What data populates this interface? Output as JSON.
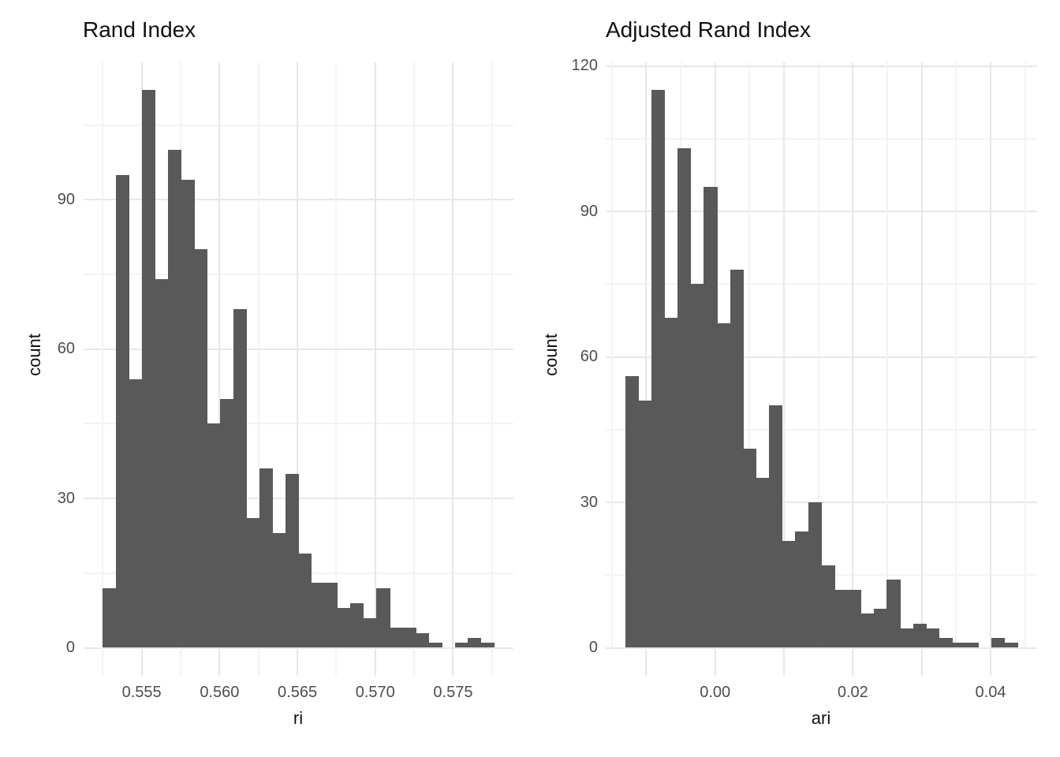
{
  "figure": {
    "background": "#ffffff",
    "bar_color": "#595959",
    "grid_major_color": "#e7e7e7",
    "grid_minor_color": "#f3f3f3",
    "title_color": "#111111",
    "tick_label_color": "#4d4d4d"
  },
  "chart_data": [
    {
      "type": "bar",
      "subtype": "histogram",
      "title": "Rand Index",
      "xlabel": "ri",
      "ylabel": "count",
      "n_bins": 30,
      "total_count": 1000,
      "bin_start": 0.5525,
      "bin_width": 0.000837,
      "counts": [
        12,
        95,
        54,
        112,
        74,
        100,
        94,
        80,
        45,
        50,
        68,
        26,
        36,
        23,
        35,
        19,
        13,
        13,
        8,
        9,
        6,
        12,
        4,
        4,
        3,
        1,
        0,
        1,
        2,
        1
      ],
      "x_tick_values": [
        0.555,
        0.56,
        0.565,
        0.57,
        0.575
      ],
      "x_tick_labels": [
        "0.555",
        "0.560",
        "0.565",
        "0.570",
        "0.575"
      ],
      "y_tick_values": [
        0,
        30,
        60,
        90
      ],
      "y_tick_labels": [
        "0",
        "30",
        "60",
        "90"
      ],
      "y_minor_values": [
        15,
        45,
        75,
        105
      ],
      "x_grid_start": 0.5525,
      "x_grid_step": 0.0025,
      "x_grid_count": 11,
      "xlim": [
        0.5513,
        0.5789
      ],
      "ylim": [
        0,
        117.6
      ],
      "grid": "on",
      "legend": "none"
    },
    {
      "type": "bar",
      "subtype": "histogram",
      "title": "Adjusted Rand Index",
      "xlabel": "ari",
      "ylabel": "count",
      "n_bins": 30,
      "total_count": 1000,
      "bin_start": -0.01302,
      "bin_width": 0.001897,
      "counts": [
        56,
        51,
        115,
        68,
        103,
        75,
        95,
        67,
        78,
        41,
        35,
        50,
        22,
        24,
        30,
        17,
        12,
        12,
        7,
        8,
        14,
        4,
        5,
        4,
        2,
        1,
        1,
        0,
        2,
        1
      ],
      "x_tick_values": [
        0.0,
        0.02,
        0.04
      ],
      "x_tick_labels": [
        "0.00",
        "0.02",
        "0.04"
      ],
      "y_tick_values": [
        0,
        30,
        60,
        90,
        120
      ],
      "y_tick_labels": [
        "0",
        "30",
        "60",
        "90",
        "120"
      ],
      "y_minor_values": [
        15,
        45,
        75,
        105
      ],
      "x_grid_start": -0.015,
      "x_grid_step": 0.005,
      "x_grid_count": 13,
      "xlim": [
        -0.0157,
        0.0466
      ],
      "ylim": [
        0,
        120.75
      ],
      "grid": "on",
      "legend": "none"
    }
  ]
}
